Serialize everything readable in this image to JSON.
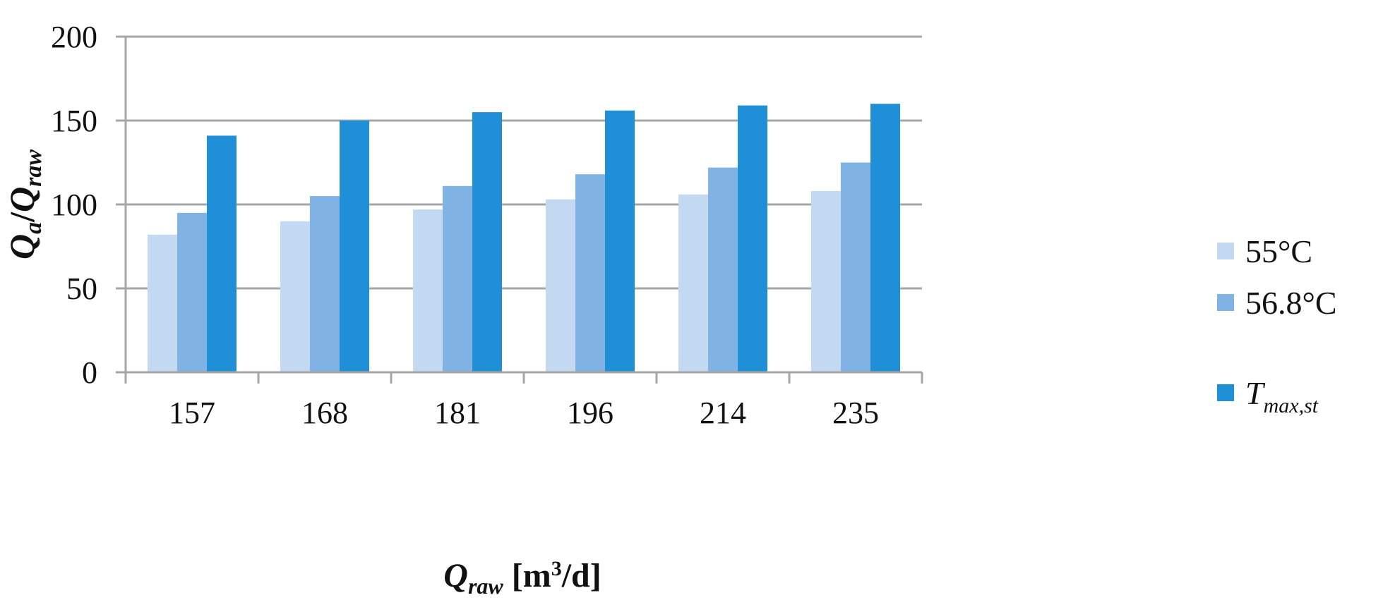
{
  "chart_data": {
    "type": "bar",
    "categories": [
      "157",
      "168",
      "181",
      "196",
      "214",
      "235"
    ],
    "series": [
      {
        "name": "55°C",
        "color": "#c3d9f1",
        "values": [
          82,
          90,
          97,
          103,
          106,
          108
        ]
      },
      {
        "name": "56.8°C",
        "color": "#80b3e3",
        "values": [
          95,
          105,
          111,
          118,
          122,
          125
        ]
      },
      {
        "name": "T_max,st",
        "color": "#1f8fd8",
        "values": [
          141,
          150,
          155,
          156,
          159,
          160
        ]
      }
    ],
    "ylim": [
      0,
      200
    ],
    "yticks": [
      "0",
      "50",
      "100",
      "150",
      "200"
    ],
    "ylabel": {
      "main_1": "Q",
      "sub_1": "a",
      "sep": "/",
      "main_2": "Q",
      "sub_2": "raw"
    },
    "xlabel": {
      "main": "Q",
      "sub": "raw",
      "unit_pre": " [m",
      "unit_sup": "3",
      "unit_post": "/d]"
    },
    "legend": {
      "position": "right",
      "items": [
        {
          "text": "55°C"
        },
        {
          "text": "56.8°C"
        },
        {
          "main": "T",
          "sub": "max,st"
        }
      ]
    },
    "grid": true,
    "gridColor": "#a6a6a6"
  }
}
